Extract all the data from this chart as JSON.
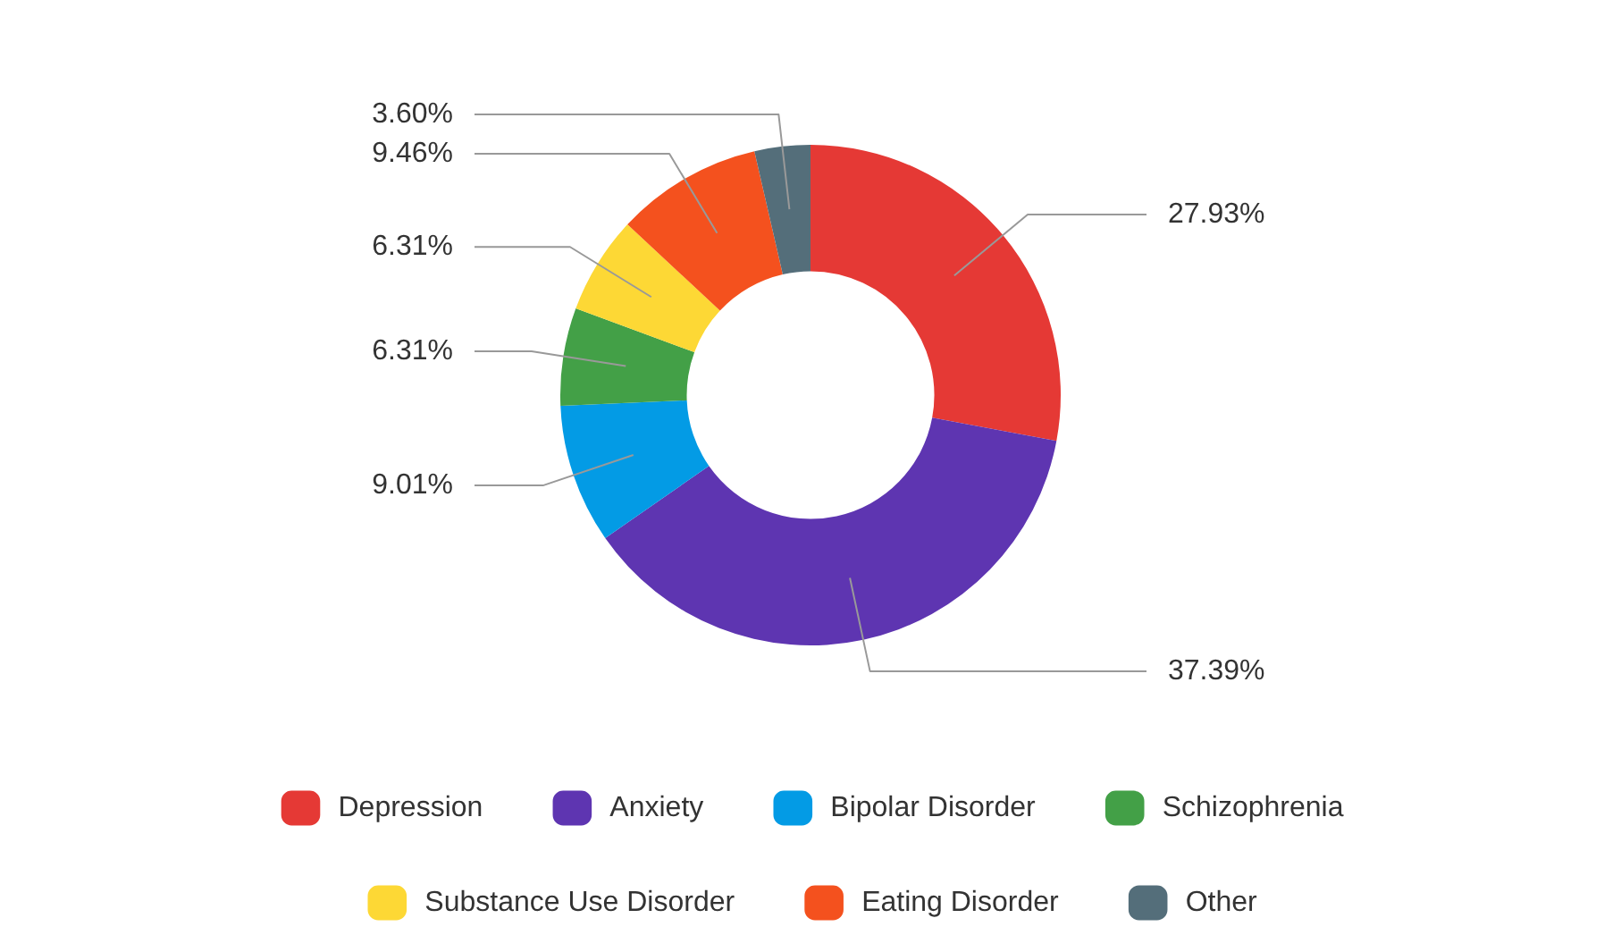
{
  "chart_data": {
    "type": "donut",
    "categories": [
      "Depression",
      "Anxiety",
      "Bipolar Disorder",
      "Schizophrenia",
      "Substance Use Disorder",
      "Eating Disorder",
      "Other"
    ],
    "values": [
      27.93,
      37.39,
      9.01,
      6.31,
      6.31,
      9.46,
      3.6
    ],
    "value_labels": [
      "27.93%",
      "37.39%",
      "9.01%",
      "6.31%",
      "6.31%",
      "9.46%",
      "3.60%"
    ],
    "colors": [
      "#e53935",
      "#5e35b1",
      "#039be5",
      "#43a047",
      "#fdd835",
      "#f4511e",
      "#546e7a"
    ],
    "legend": "bottom"
  }
}
